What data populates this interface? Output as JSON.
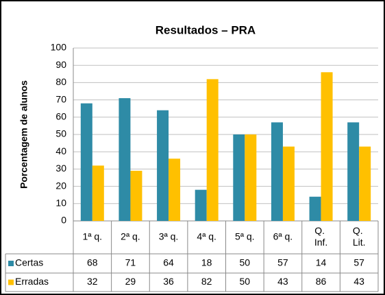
{
  "chart_data": {
    "type": "bar",
    "title": "Resultados – PRA",
    "y_label": "Porcentagem de alunos",
    "categories": [
      "1ª q.",
      "2ª q.",
      "3ª q.",
      "4ª q.",
      "5ª q.",
      "6ª q.",
      "Q. Inf.",
      "Q. Lit."
    ],
    "series": [
      {
        "name": "Certas",
        "color": "#2e8ba6",
        "values": [
          68,
          71,
          64,
          18,
          50,
          57,
          14,
          57
        ]
      },
      {
        "name": "Erradas",
        "color": "#ffc000",
        "values": [
          32,
          29,
          36,
          82,
          50,
          43,
          86,
          43
        ]
      }
    ],
    "ylim": [
      0,
      100
    ],
    "yticks": [
      0,
      10,
      20,
      30,
      40,
      50,
      60,
      70,
      80,
      90,
      100
    ],
    "grid": true,
    "data_table": true
  }
}
